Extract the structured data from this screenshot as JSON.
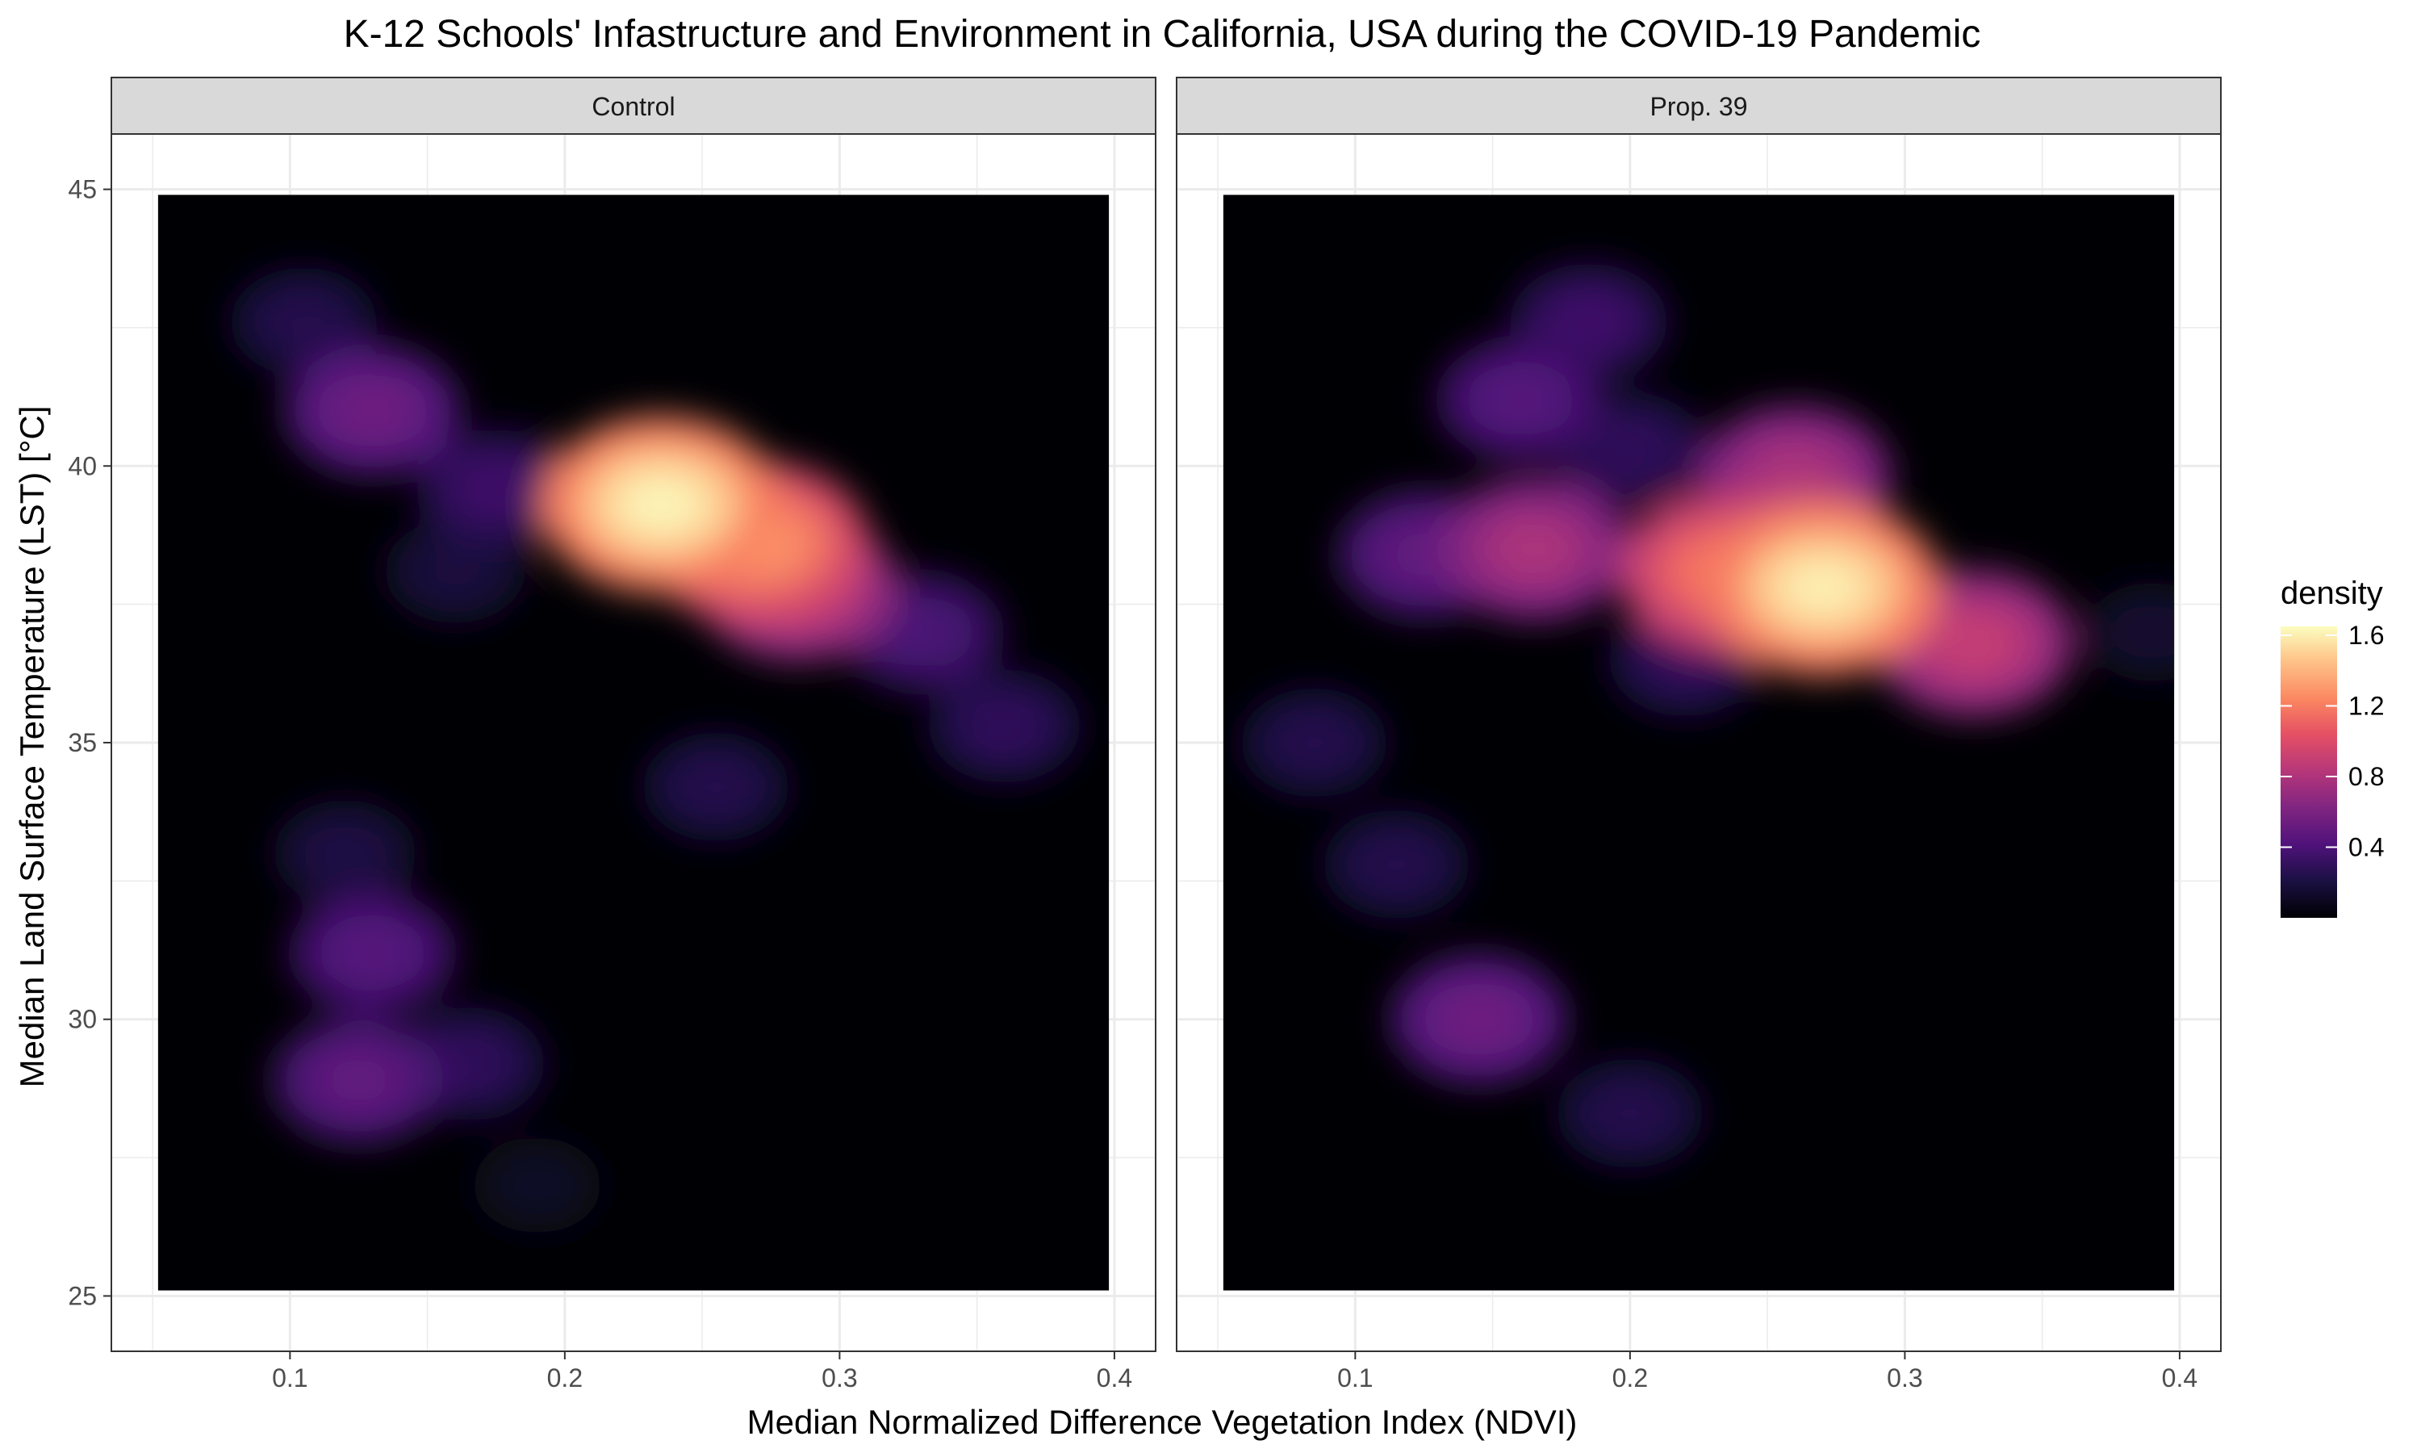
{
  "chart_data": {
    "type": "heatmap",
    "title": "K-12 Schools' Infastructure and Environment in California, USA during the COVID-19 Pandemic",
    "xlabel": "Median Normalized Difference Vegetation Index (NDVI)",
    "ylabel": "Median Land Surface Temperature (LST) [°C]",
    "xlim": [
      0.035,
      0.415
    ],
    "ylim": [
      24,
      46
    ],
    "x_ticks": [
      0.1,
      0.2,
      0.3,
      0.4
    ],
    "x_tick_labels": [
      "0.1",
      "0.2",
      "0.3",
      "0.4"
    ],
    "y_ticks": [
      25,
      30,
      35,
      40,
      45
    ],
    "y_tick_labels": [
      "25",
      "30",
      "35",
      "40",
      "45"
    ],
    "data_extent": {
      "x": [
        0.052,
        0.398
      ],
      "y": [
        25.1,
        44.9
      ]
    },
    "grid": true,
    "colormap": "magma",
    "legend": {
      "title": "density",
      "position": "right",
      "range": [
        0.0,
        1.65
      ],
      "ticks": [
        0.4,
        0.8,
        1.2,
        1.6
      ],
      "tick_labels": [
        "0.4",
        "0.8",
        "1.2",
        "1.6"
      ]
    },
    "panels": [
      {
        "name": "Control",
        "density_peaks": [
          {
            "x": 0.235,
            "y": 39.3,
            "density": 1.62
          },
          {
            "x": 0.27,
            "y": 38.6,
            "density": 1.3
          },
          {
            "x": 0.285,
            "y": 37.8,
            "density": 0.9
          },
          {
            "x": 0.13,
            "y": 41.0,
            "density": 0.55
          },
          {
            "x": 0.105,
            "y": 42.6,
            "density": 0.25
          },
          {
            "x": 0.175,
            "y": 39.6,
            "density": 0.35
          },
          {
            "x": 0.16,
            "y": 38.1,
            "density": 0.2
          },
          {
            "x": 0.33,
            "y": 37.0,
            "density": 0.4
          },
          {
            "x": 0.36,
            "y": 35.3,
            "density": 0.3
          },
          {
            "x": 0.255,
            "y": 34.2,
            "density": 0.25
          },
          {
            "x": 0.13,
            "y": 31.2,
            "density": 0.45
          },
          {
            "x": 0.12,
            "y": 33.0,
            "density": 0.22
          },
          {
            "x": 0.125,
            "y": 28.9,
            "density": 0.5
          },
          {
            "x": 0.165,
            "y": 29.2,
            "density": 0.3
          },
          {
            "x": 0.19,
            "y": 27.0,
            "density": 0.12
          }
        ]
      },
      {
        "name": "Prop. 39",
        "density_peaks": [
          {
            "x": 0.27,
            "y": 37.8,
            "density": 1.6
          },
          {
            "x": 0.235,
            "y": 38.1,
            "density": 1.2
          },
          {
            "x": 0.26,
            "y": 39.8,
            "density": 0.8
          },
          {
            "x": 0.325,
            "y": 36.8,
            "density": 0.9
          },
          {
            "x": 0.165,
            "y": 38.5,
            "density": 0.8
          },
          {
            "x": 0.125,
            "y": 38.4,
            "density": 0.5
          },
          {
            "x": 0.16,
            "y": 41.2,
            "density": 0.45
          },
          {
            "x": 0.185,
            "y": 42.6,
            "density": 0.35
          },
          {
            "x": 0.2,
            "y": 40.3,
            "density": 0.3
          },
          {
            "x": 0.22,
            "y": 36.5,
            "density": 0.3
          },
          {
            "x": 0.085,
            "y": 35.0,
            "density": 0.25
          },
          {
            "x": 0.145,
            "y": 30.0,
            "density": 0.55
          },
          {
            "x": 0.115,
            "y": 32.8,
            "density": 0.25
          },
          {
            "x": 0.2,
            "y": 28.3,
            "density": 0.25
          },
          {
            "x": 0.39,
            "y": 37.0,
            "density": 0.15
          }
        ]
      }
    ]
  }
}
